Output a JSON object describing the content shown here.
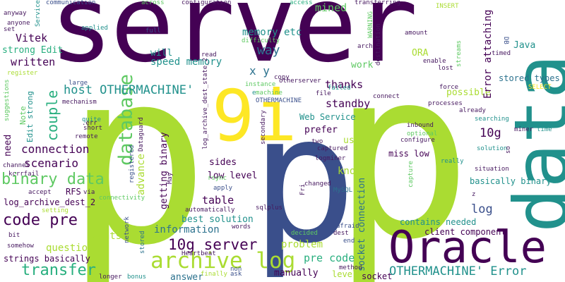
{
  "words": {
    "server": "server",
    "p_big_left": "p",
    "p_big_right": "p",
    "p_center": "p",
    "data": "data",
    "oracle": "Oracle",
    "nine_i": "9i",
    "archive_log": "archive log",
    "database": "database",
    "binary_data": "binary data",
    "ten_g_server": "10g server",
    "code_pre": "code pre",
    "transfer": "transfer",
    "other_error": "OTHERMACHINE' Error",
    "host_other": "host OTHERMACHINE'",
    "couple": "couple",
    "connection": "connection",
    "scenario": "scenario",
    "written": "written",
    "vitek": "Vitek",
    "strong_edit": "strong Edit",
    "memory_etc": "memory etc",
    "way": "way",
    "x_y": "x y",
    "mined": "mined",
    "speed_memory": "speed memory",
    "will": "will",
    "ten_g": "10g",
    "log": "log",
    "java": "Java",
    "ora": "ORA",
    "standby": "standby",
    "prefer": "prefer",
    "used": "used",
    "thanks": "thanks",
    "possible": "possible",
    "stored_types": "stored types",
    "error_attaching": "Error attaching",
    "basically_binary": "basically binary",
    "contains_needed": "contains needed",
    "client_component": "client component",
    "socket_connection": "socket connection",
    "pre_code": "pre code",
    "problem": "problem",
    "manually": "manually",
    "level": "level",
    "socket": "socket",
    "know": "know",
    "miss_low": "miss low",
    "web_service": "Web Service",
    "work": "work",
    "table": "table",
    "sides": "sides",
    "low_level": "low level",
    "best_solution": "best solution",
    "information": "information",
    "question": "question",
    "wants": "wants",
    "answer": "answer",
    "strings_basically": "strings basically",
    "rfs": "RFS",
    "log_archive_dest_2": "log_archive_dest_2",
    "need": "need",
    "edit_strong": "Edit strong",
    "note": "Note",
    "advance": "advance",
    "getting_binary": "getting binary",
    "full": "full",
    "difficulty": "difficulty",
    "configuration": "configuration",
    "across": "across",
    "communication": "communication",
    "anyway": "anyway",
    "anyone": "anyone",
    "set": "set",
    "service": "Service",
    "applied": "applied",
    "large": "large",
    "register": "register",
    "suggestions": "suggestions",
    "mechanism": "mechanism",
    "quite": "quite",
    "short": "short",
    "remote": "remote",
    "err": ".err",
    "channel": "channel",
    "kcrrfail": "kcrrfail",
    "accept": "accept",
    "via": "via",
    "setting": "setting",
    "connectivity": "connectivity",
    "bit": "bit",
    "somehow": "somehow",
    "longer": "longer",
    "bonus": "bonus",
    "finally": "finally",
    "ask": "ask",
    "non": "non",
    "method": "method",
    "end": "end",
    "dest": "dest",
    "afraid": "afraid",
    "decided": "decided",
    "mysql": "MySQL",
    "changed": "changed",
    "fri": "Fri",
    "words": "words",
    "sqlplus": "sqlplus",
    "automatically": "automatically",
    "apply": "apply",
    "rsync": "rsync",
    "may": "May",
    "registered": "registered",
    "dataguard": "Dataguard",
    "log_archive_dest_state_2": "log_archive_dest_state_2",
    "read": "read",
    "otherserver": "otherserver",
    "copy": "copy",
    "instance": "instance",
    "machine": "machine",
    "othermachine": "OTHERMACHINE",
    "secondary": "secondary",
    "file": "file",
    "failed": "failed",
    "access": "access",
    "transferring": "transferring",
    "insert": "INSERT",
    "warning": "WARNING",
    "destination": "destination",
    "arch": "arch",
    "amount": "amount",
    "db": "DB",
    "timed": "timed",
    "enable": "enable",
    "lost": "lost",
    "streams": "streams",
    "select": "SELECT",
    "force": "force",
    "connect": "connect",
    "processes": "processes",
    "already": "already",
    "searching": "searching",
    "miner": "miner",
    "time": "time",
    "inbound": "inbound",
    "optional": "optional",
    "configure": "configure",
    "two": "two",
    "captured": "captured",
    "logminer": "logminer",
    "really": "really",
    "solution": "solution",
    "situation": "situation",
    "capture": "capture",
    "z": "z",
    "network": "network",
    "stored": "stored",
    "heartbeat": "Heartbeat",
    "e": "e",
    "so": "so"
  }
}
